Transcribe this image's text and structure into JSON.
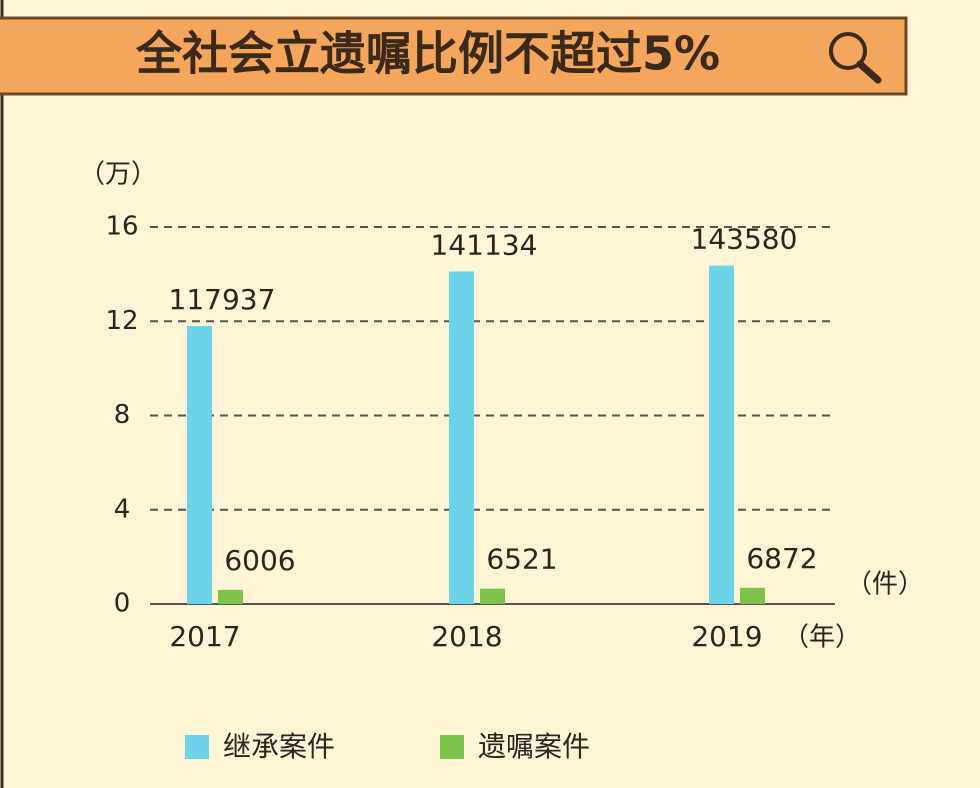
{
  "chart_data": {
    "type": "bar",
    "title": "全社会立遗嘱比例不超过5%",
    "y_unit": "（万）",
    "value_unit": "（件）",
    "x_unit": "（年）",
    "categories": [
      "2017",
      "2018",
      "2019"
    ],
    "series": [
      {
        "name": "继承案件",
        "color": "#6dd3e8",
        "values": [
          11.7937,
          14.1134,
          14.358
        ],
        "value_labels": [
          "117937",
          "141134",
          "143580"
        ]
      },
      {
        "name": "遗嘱案件",
        "color": "#7dc24b",
        "values": [
          0.6006,
          0.6521,
          0.6872
        ],
        "value_labels": [
          "6006",
          "6521",
          "6872"
        ]
      }
    ],
    "ylim": [
      0,
      16
    ],
    "yticks": [
      0,
      4,
      8,
      12,
      16
    ],
    "grid": true,
    "legend": "bottom"
  }
}
